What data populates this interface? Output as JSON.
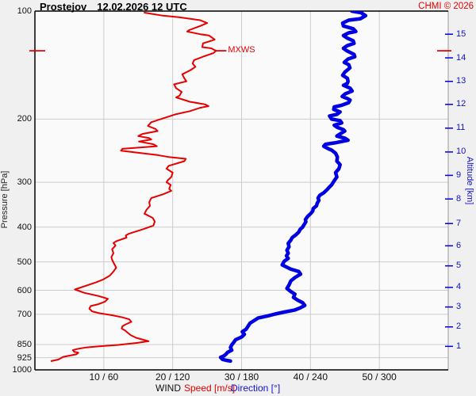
{
  "header": {
    "station": "Prostejov",
    "datetime": "12.02.2026 12 UTC",
    "copyright": "CHMI © 2026"
  },
  "axes": {
    "pressure": {
      "title": "Pressure [hPa]",
      "scale": "log",
      "range": [
        100,
        1000
      ],
      "tick_labels": [
        100,
        200,
        300,
        400,
        500,
        600,
        700,
        850,
        925,
        1000
      ],
      "gridlines": [
        200,
        300,
        400,
        500,
        600,
        700,
        850,
        925
      ]
    },
    "altitude": {
      "title": "Altitude [km]",
      "ticks": [
        {
          "km": 15,
          "p": 116
        },
        {
          "km": 14,
          "p": 135
        },
        {
          "km": 13,
          "p": 157
        },
        {
          "km": 12,
          "p": 182
        },
        {
          "km": 11,
          "p": 212
        },
        {
          "km": 10,
          "p": 247
        },
        {
          "km": 9,
          "p": 287
        },
        {
          "km": 8,
          "p": 334
        },
        {
          "km": 7,
          "p": 391
        },
        {
          "km": 6,
          "p": 451
        },
        {
          "km": 5,
          "p": 513
        },
        {
          "km": 4,
          "p": 589
        },
        {
          "km": 3,
          "p": 668
        },
        {
          "km": 2,
          "p": 759
        },
        {
          "km": 1,
          "p": 860
        }
      ]
    },
    "x": {
      "group_title": "WIND",
      "speed_label": "Speed [m/s]",
      "direction_label": "Direction [°]",
      "speed_range": [
        0,
        60
      ],
      "direction_range": [
        0,
        360
      ],
      "tick_labels": [
        "10 / 60",
        "20 / 120",
        "30 / 180",
        "40 / 240",
        "50 / 300"
      ]
    }
  },
  "mxws": {
    "label": "MXWS",
    "p": 129,
    "speed": 26.3
  },
  "colors": {
    "speed_curve": "#e60000",
    "direction_curve": "#0000e0",
    "red_text": "#e60000",
    "blue_text": "#1111cc",
    "grid": "#cccccc",
    "border": "#000000",
    "right_border": "#9a9a9a",
    "plot_bg": "#fafafa",
    "page_bg": "#f0f0f0"
  },
  "chart_data": {
    "type": "line",
    "title": "Prostejov 12.02.2026 12 UTC — vertical wind profile (sounding)",
    "y_axis": {
      "label": "Pressure [hPa]",
      "scale": "log",
      "range": [
        100,
        1000
      ],
      "direction": "increasing downward"
    },
    "x_axis": {
      "label": "WIND",
      "speed_range_ms": [
        0,
        60
      ],
      "direction_range_deg": [
        0,
        360
      ]
    },
    "grid": true,
    "annotations": [
      {
        "label": "MXWS",
        "pressure_hPa": 129,
        "speed_ms": 26.3
      }
    ],
    "series": [
      {
        "name": "Speed [m/s]",
        "color": "#e60000",
        "points_p_v": [
          [
            101,
            15.9
          ],
          [
            103,
            18.6
          ],
          [
            104,
            20.9
          ],
          [
            106,
            24.0
          ],
          [
            108,
            25.0
          ],
          [
            110,
            24.0
          ],
          [
            113,
            22.4
          ],
          [
            114,
            22.1
          ],
          [
            116,
            24.0
          ],
          [
            117,
            25.3
          ],
          [
            120,
            26.1
          ],
          [
            121,
            25.6
          ],
          [
            123,
            24.4
          ],
          [
            126,
            24.3
          ],
          [
            127,
            25.6
          ],
          [
            129,
            26.3
          ],
          [
            131,
            25.9
          ],
          [
            134,
            24.4
          ],
          [
            137,
            23.1
          ],
          [
            140,
            22.9
          ],
          [
            143,
            23.3
          ],
          [
            146,
            22.6
          ],
          [
            150,
            21.4
          ],
          [
            154,
            21.7
          ],
          [
            157,
            22.0
          ],
          [
            160,
            20.2
          ],
          [
            164,
            20.5
          ],
          [
            168,
            21.3
          ],
          [
            172,
            21.0
          ],
          [
            174,
            20.5
          ],
          [
            179,
            22.5
          ],
          [
            182,
            24.7
          ],
          [
            184,
            25.2
          ],
          [
            186,
            24.0
          ],
          [
            190,
            22.5
          ],
          [
            194,
            20.4
          ],
          [
            199,
            18.6
          ],
          [
            204,
            16.9
          ],
          [
            209,
            16.4
          ],
          [
            213,
            17.5
          ],
          [
            216,
            17.8
          ],
          [
            220,
            15.6
          ],
          [
            223,
            15.0
          ],
          [
            226,
            16.6
          ],
          [
            228,
            16.9
          ],
          [
            231,
            15.1
          ],
          [
            235,
            17.2
          ],
          [
            238,
            17.7
          ],
          [
            242,
            12.7
          ],
          [
            245,
            12.5
          ],
          [
            249,
            15.6
          ],
          [
            252,
            17.8
          ],
          [
            255,
            19.4
          ],
          [
            258,
            21.9
          ],
          [
            262,
            21.7
          ],
          [
            270,
            19.4
          ],
          [
            275,
            19.1
          ],
          [
            282,
            20.0
          ],
          [
            290,
            19.8
          ],
          [
            296,
            19.3
          ],
          [
            300,
            19.1
          ],
          [
            305,
            19.7
          ],
          [
            313,
            19.5
          ],
          [
            317,
            19.8
          ],
          [
            324,
            18.6
          ],
          [
            332,
            16.9
          ],
          [
            341,
            16.6
          ],
          [
            349,
            16.7
          ],
          [
            358,
            16.2
          ],
          [
            367,
            15.9
          ],
          [
            377,
            17.1
          ],
          [
            386,
            17.4
          ],
          [
            396,
            17.2
          ],
          [
            406,
            15.6
          ],
          [
            417,
            13.7
          ],
          [
            422,
            13.2
          ],
          [
            428,
            13.3
          ],
          [
            438,
            11.8
          ],
          [
            443,
            11.4
          ],
          [
            450,
            11.7
          ],
          [
            461,
            11.2
          ],
          [
            473,
            11.4
          ],
          [
            485,
            11.1
          ],
          [
            493,
            11.2
          ],
          [
            502,
            11.4
          ],
          [
            519,
            11.8
          ],
          [
            532,
            11.4
          ],
          [
            546,
            10.9
          ],
          [
            560,
            9.9
          ],
          [
            570,
            8.9
          ],
          [
            597,
            5.8
          ],
          [
            610,
            7.2
          ],
          [
            623,
            9.3
          ],
          [
            634,
            10.6
          ],
          [
            645,
            10.2
          ],
          [
            656,
            9.2
          ],
          [
            664,
            8.1
          ],
          [
            675,
            7.9
          ],
          [
            687,
            8.3
          ],
          [
            695,
            9.3
          ],
          [
            704,
            11.2
          ],
          [
            714,
            12.7
          ],
          [
            723,
            13.7
          ],
          [
            735,
            14.0
          ],
          [
            748,
            13.1
          ],
          [
            756,
            12.7
          ],
          [
            767,
            12.6
          ],
          [
            777,
            13.1
          ],
          [
            786,
            13.4
          ],
          [
            800,
            13.9
          ],
          [
            814,
            14.7
          ],
          [
            827,
            16.0
          ],
          [
            832,
            16.5
          ],
          [
            841,
            14.9
          ],
          [
            852,
            12.1
          ],
          [
            860,
            9.3
          ],
          [
            866,
            7.4
          ],
          [
            875,
            6.1
          ],
          [
            881,
            5.5
          ],
          [
            890,
            5.7
          ],
          [
            896,
            6.3
          ],
          [
            905,
            6.0
          ],
          [
            920,
            4.1
          ],
          [
            936,
            3.4
          ],
          [
            945,
            2.4
          ]
        ]
      },
      {
        "name": "Direction [°]",
        "color": "#0000e0",
        "points_p_v": [
          [
            100,
            276
          ],
          [
            101,
            284
          ],
          [
            103,
            288
          ],
          [
            105,
            283.6
          ],
          [
            106,
            273.3
          ],
          [
            108,
            268
          ],
          [
            110,
            268.7
          ],
          [
            112,
            277.2
          ],
          [
            114,
            279.5
          ],
          [
            115,
            273.3
          ],
          [
            117,
            268.7
          ],
          [
            119,
            272.2
          ],
          [
            121,
            277.2
          ],
          [
            123,
            277.9
          ],
          [
            125,
            271.7
          ],
          [
            127,
            268.7
          ],
          [
            129,
            271.7
          ],
          [
            132,
            277.9
          ],
          [
            134,
            278.6
          ],
          [
            136,
            272.7
          ],
          [
            139,
            269.4
          ],
          [
            141,
            273.3
          ],
          [
            144,
            274.4
          ],
          [
            148,
            269.9
          ],
          [
            151,
            268
          ],
          [
            154,
            272.2
          ],
          [
            157,
            272.7
          ],
          [
            159,
            272.2
          ],
          [
            161,
            268.7
          ],
          [
            164,
            274.5
          ],
          [
            167,
            276.3
          ],
          [
            170,
            270.3
          ],
          [
            173,
            267.6
          ],
          [
            175,
            271.7
          ],
          [
            177,
            274.5
          ],
          [
            180,
            273.3
          ],
          [
            183,
            267.2
          ],
          [
            185,
            260.7
          ],
          [
            188,
            260.3
          ],
          [
            191,
            265.8
          ],
          [
            194,
            263
          ],
          [
            196,
            256.6
          ],
          [
            200,
            258.4
          ],
          [
            202,
            265.8
          ],
          [
            205,
            267.2
          ],
          [
            208,
            260.7
          ],
          [
            211,
            263.5
          ],
          [
            214,
            268.7
          ],
          [
            216,
            269.9
          ],
          [
            220,
            265.8
          ],
          [
            223,
            263
          ],
          [
            226,
            269.9
          ],
          [
            229,
            272.7
          ],
          [
            233,
            261.2
          ],
          [
            235,
            253.1
          ],
          [
            238,
            251.5
          ],
          [
            242,
            255.7
          ],
          [
            244,
            258.4
          ],
          [
            249,
            261.9
          ],
          [
            255,
            263.5
          ],
          [
            262,
            263
          ],
          [
            268,
            265.8
          ],
          [
            275,
            264.8
          ],
          [
            282,
            261.9
          ],
          [
            290,
            263
          ],
          [
            297,
            260.7
          ],
          [
            305,
            258.4
          ],
          [
            310,
            256.2
          ],
          [
            315,
            254.3
          ],
          [
            321,
            251.6
          ],
          [
            326,
            248.1
          ],
          [
            332,
            246.6
          ],
          [
            337,
            247.4
          ],
          [
            343,
            245.9
          ],
          [
            349,
            245.2
          ],
          [
            355,
            242.4
          ],
          [
            361,
            242
          ],
          [
            367,
            240.1
          ],
          [
            374,
            237.4
          ],
          [
            381,
            235.6
          ],
          [
            387,
            236
          ],
          [
            394,
            234.4
          ],
          [
            400,
            233.2
          ],
          [
            406,
            231
          ],
          [
            413,
            229.8
          ],
          [
            420,
            227.5
          ],
          [
            428,
            224.1
          ],
          [
            435,
            222.9
          ],
          [
            444,
            220.6
          ],
          [
            454,
            221.3
          ],
          [
            464,
            219.5
          ],
          [
            473,
            220.6
          ],
          [
            481,
            219.1
          ],
          [
            489,
            220.6
          ],
          [
            498,
            217.2
          ],
          [
            510,
            215.4
          ],
          [
            524,
            222.9
          ],
          [
            532,
            229.8
          ],
          [
            541,
            231.4
          ],
          [
            553,
            226.4
          ],
          [
            565,
            222.9
          ],
          [
            580,
            221.3
          ],
          [
            593,
            219.5
          ],
          [
            605,
            222.9
          ],
          [
            615,
            226.4
          ],
          [
            628,
            225.2
          ],
          [
            639,
            228.7
          ],
          [
            650,
            233.2
          ],
          [
            661,
            235.1
          ],
          [
            672,
            231
          ],
          [
            681,
            226.4
          ],
          [
            690,
            217.2
          ],
          [
            699,
            209.2
          ],
          [
            707,
            203
          ],
          [
            717,
            194.3
          ],
          [
            729,
            190.9
          ],
          [
            741,
            187.4
          ],
          [
            756,
            185.6
          ],
          [
            770,
            184
          ],
          [
            783,
            180.6
          ],
          [
            796,
            182.4
          ],
          [
            810,
            180.1
          ],
          [
            824,
            174.8
          ],
          [
            838,
            173.2
          ],
          [
            852,
            171.4
          ],
          [
            866,
            170.3
          ],
          [
            881,
            171.4
          ],
          [
            893,
            167.9
          ],
          [
            905,
            166.3
          ],
          [
            915,
            164.5
          ],
          [
            923,
            161.7
          ],
          [
            935,
            163.4
          ],
          [
            941,
            166.8
          ],
          [
            945,
            170.3
          ]
        ]
      }
    ]
  }
}
